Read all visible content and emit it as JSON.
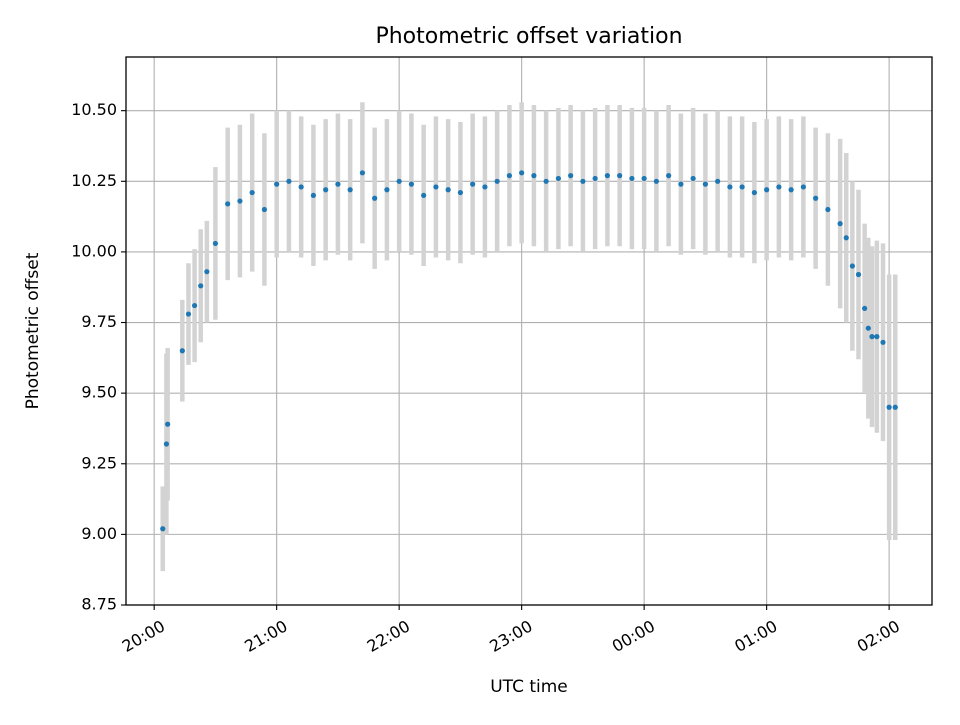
{
  "chart_data": {
    "type": "scatter",
    "title": "Photometric offset variation",
    "xlabel": "UTC time",
    "ylabel": "Photometric offset",
    "x_axis": {
      "kind": "time",
      "start": "20:00",
      "range_hours": [
        -0.23,
        6.35
      ],
      "ticks": [
        {
          "hours": 0,
          "label": "20:00"
        },
        {
          "hours": 1,
          "label": "21:00"
        },
        {
          "hours": 2,
          "label": "22:00"
        },
        {
          "hours": 3,
          "label": "23:00"
        },
        {
          "hours": 4,
          "label": "00:00"
        },
        {
          "hours": 5,
          "label": "01:00"
        },
        {
          "hours": 6,
          "label": "02:00"
        }
      ]
    },
    "y_axis": {
      "range": [
        8.75,
        10.69
      ],
      "ticks": [
        {
          "value": 8.75,
          "label": "8.75"
        },
        {
          "value": 9.0,
          "label": "9.00"
        },
        {
          "value": 9.25,
          "label": "9.25"
        },
        {
          "value": 9.5,
          "label": "9.50"
        },
        {
          "value": 9.75,
          "label": "9.75"
        },
        {
          "value": 10.0,
          "label": "10.00"
        },
        {
          "value": 10.25,
          "label": "10.25"
        },
        {
          "value": 10.5,
          "label": "10.50"
        }
      ]
    },
    "grid": true,
    "colors": {
      "points": "#1f77b4",
      "error_bars": "#d3d3d3",
      "grid": "#b0b0b0"
    },
    "series": [
      {
        "x_hours": [
          0.07,
          0.1,
          0.11,
          0.23,
          0.28,
          0.33,
          0.38,
          0.43,
          0.5,
          0.6,
          0.7,
          0.8,
          0.9,
          1.0,
          1.1,
          1.2,
          1.3,
          1.4,
          1.5,
          1.6,
          1.7,
          1.8,
          1.9,
          2.0,
          2.1,
          2.2,
          2.3,
          2.4,
          2.5,
          2.6,
          2.7,
          2.8,
          2.9,
          3.0,
          3.1,
          3.2,
          3.3,
          3.4,
          3.5,
          3.6,
          3.7,
          3.8,
          3.9,
          4.0,
          4.1,
          4.2,
          4.3,
          4.4,
          4.5,
          4.6,
          4.7,
          4.8,
          4.9,
          5.0,
          5.1,
          5.2,
          5.3,
          5.4,
          5.5,
          5.6,
          5.65,
          5.7,
          5.75,
          5.8,
          5.83,
          5.86,
          5.9,
          5.95,
          6.0,
          6.05
        ],
        "y": [
          9.02,
          9.32,
          9.39,
          9.65,
          9.78,
          9.81,
          9.88,
          9.93,
          10.03,
          10.17,
          10.18,
          10.21,
          10.15,
          10.24,
          10.25,
          10.23,
          10.2,
          10.22,
          10.24,
          10.22,
          10.28,
          10.19,
          10.22,
          10.25,
          10.24,
          10.2,
          10.23,
          10.22,
          10.21,
          10.24,
          10.23,
          10.25,
          10.27,
          10.28,
          10.27,
          10.25,
          10.26,
          10.27,
          10.25,
          10.26,
          10.27,
          10.27,
          10.26,
          10.26,
          10.25,
          10.27,
          10.24,
          10.26,
          10.24,
          10.25,
          10.23,
          10.23,
          10.21,
          10.22,
          10.23,
          10.22,
          10.23,
          10.19,
          10.15,
          10.1,
          10.05,
          9.95,
          9.92,
          9.8,
          9.73,
          9.7,
          9.7,
          9.68,
          9.45,
          9.45
        ],
        "error": [
          0.15,
          0.32,
          0.27,
          0.18,
          0.18,
          0.2,
          0.2,
          0.18,
          0.27,
          0.27,
          0.27,
          0.28,
          0.27,
          0.26,
          0.25,
          0.25,
          0.25,
          0.25,
          0.25,
          0.25,
          0.25,
          0.25,
          0.25,
          0.25,
          0.25,
          0.25,
          0.25,
          0.25,
          0.25,
          0.25,
          0.25,
          0.25,
          0.25,
          0.25,
          0.25,
          0.25,
          0.25,
          0.25,
          0.25,
          0.25,
          0.25,
          0.25,
          0.25,
          0.25,
          0.25,
          0.25,
          0.25,
          0.25,
          0.25,
          0.25,
          0.25,
          0.25,
          0.25,
          0.25,
          0.25,
          0.25,
          0.25,
          0.25,
          0.27,
          0.3,
          0.3,
          0.3,
          0.3,
          0.3,
          0.32,
          0.32,
          0.34,
          0.35,
          0.47,
          0.47
        ]
      }
    ]
  }
}
